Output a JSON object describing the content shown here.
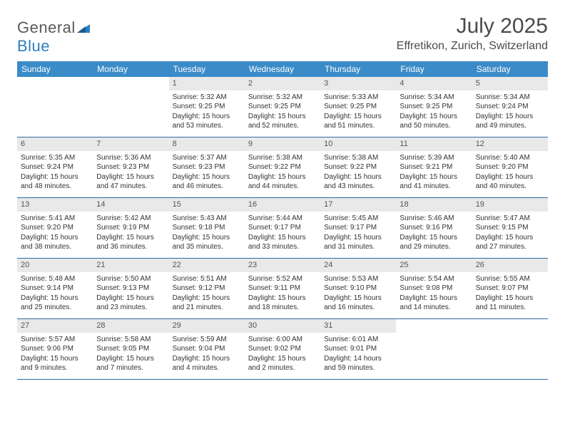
{
  "brand": {
    "name_a": "General",
    "name_b": "Blue"
  },
  "title": "July 2025",
  "location": "Effretikon, Zurich, Switzerland",
  "colors": {
    "header_bg": "#3b8bc8",
    "header_text": "#ffffff",
    "daynum_bg": "#e9e9e9",
    "week_border": "#2d6aa3",
    "title_color": "#4a4a4a"
  },
  "weekdays": [
    "Sunday",
    "Monday",
    "Tuesday",
    "Wednesday",
    "Thursday",
    "Friday",
    "Saturday"
  ],
  "weeks": [
    [
      null,
      null,
      {
        "n": "1",
        "sr": "5:32 AM",
        "ss": "9:25 PM",
        "dl": "15 hours and 53 minutes."
      },
      {
        "n": "2",
        "sr": "5:32 AM",
        "ss": "9:25 PM",
        "dl": "15 hours and 52 minutes."
      },
      {
        "n": "3",
        "sr": "5:33 AM",
        "ss": "9:25 PM",
        "dl": "15 hours and 51 minutes."
      },
      {
        "n": "4",
        "sr": "5:34 AM",
        "ss": "9:25 PM",
        "dl": "15 hours and 50 minutes."
      },
      {
        "n": "5",
        "sr": "5:34 AM",
        "ss": "9:24 PM",
        "dl": "15 hours and 49 minutes."
      }
    ],
    [
      {
        "n": "6",
        "sr": "5:35 AM",
        "ss": "9:24 PM",
        "dl": "15 hours and 48 minutes."
      },
      {
        "n": "7",
        "sr": "5:36 AM",
        "ss": "9:23 PM",
        "dl": "15 hours and 47 minutes."
      },
      {
        "n": "8",
        "sr": "5:37 AM",
        "ss": "9:23 PM",
        "dl": "15 hours and 46 minutes."
      },
      {
        "n": "9",
        "sr": "5:38 AM",
        "ss": "9:22 PM",
        "dl": "15 hours and 44 minutes."
      },
      {
        "n": "10",
        "sr": "5:38 AM",
        "ss": "9:22 PM",
        "dl": "15 hours and 43 minutes."
      },
      {
        "n": "11",
        "sr": "5:39 AM",
        "ss": "9:21 PM",
        "dl": "15 hours and 41 minutes."
      },
      {
        "n": "12",
        "sr": "5:40 AM",
        "ss": "9:20 PM",
        "dl": "15 hours and 40 minutes."
      }
    ],
    [
      {
        "n": "13",
        "sr": "5:41 AM",
        "ss": "9:20 PM",
        "dl": "15 hours and 38 minutes."
      },
      {
        "n": "14",
        "sr": "5:42 AM",
        "ss": "9:19 PM",
        "dl": "15 hours and 36 minutes."
      },
      {
        "n": "15",
        "sr": "5:43 AM",
        "ss": "9:18 PM",
        "dl": "15 hours and 35 minutes."
      },
      {
        "n": "16",
        "sr": "5:44 AM",
        "ss": "9:17 PM",
        "dl": "15 hours and 33 minutes."
      },
      {
        "n": "17",
        "sr": "5:45 AM",
        "ss": "9:17 PM",
        "dl": "15 hours and 31 minutes."
      },
      {
        "n": "18",
        "sr": "5:46 AM",
        "ss": "9:16 PM",
        "dl": "15 hours and 29 minutes."
      },
      {
        "n": "19",
        "sr": "5:47 AM",
        "ss": "9:15 PM",
        "dl": "15 hours and 27 minutes."
      }
    ],
    [
      {
        "n": "20",
        "sr": "5:48 AM",
        "ss": "9:14 PM",
        "dl": "15 hours and 25 minutes."
      },
      {
        "n": "21",
        "sr": "5:50 AM",
        "ss": "9:13 PM",
        "dl": "15 hours and 23 minutes."
      },
      {
        "n": "22",
        "sr": "5:51 AM",
        "ss": "9:12 PM",
        "dl": "15 hours and 21 minutes."
      },
      {
        "n": "23",
        "sr": "5:52 AM",
        "ss": "9:11 PM",
        "dl": "15 hours and 18 minutes."
      },
      {
        "n": "24",
        "sr": "5:53 AM",
        "ss": "9:10 PM",
        "dl": "15 hours and 16 minutes."
      },
      {
        "n": "25",
        "sr": "5:54 AM",
        "ss": "9:08 PM",
        "dl": "15 hours and 14 minutes."
      },
      {
        "n": "26",
        "sr": "5:55 AM",
        "ss": "9:07 PM",
        "dl": "15 hours and 11 minutes."
      }
    ],
    [
      {
        "n": "27",
        "sr": "5:57 AM",
        "ss": "9:06 PM",
        "dl": "15 hours and 9 minutes."
      },
      {
        "n": "28",
        "sr": "5:58 AM",
        "ss": "9:05 PM",
        "dl": "15 hours and 7 minutes."
      },
      {
        "n": "29",
        "sr": "5:59 AM",
        "ss": "9:04 PM",
        "dl": "15 hours and 4 minutes."
      },
      {
        "n": "30",
        "sr": "6:00 AM",
        "ss": "9:02 PM",
        "dl": "15 hours and 2 minutes."
      },
      {
        "n": "31",
        "sr": "6:01 AM",
        "ss": "9:01 PM",
        "dl": "14 hours and 59 minutes."
      },
      null,
      null
    ]
  ],
  "labels": {
    "sunrise": "Sunrise:",
    "sunset": "Sunset:",
    "daylight": "Daylight:"
  }
}
